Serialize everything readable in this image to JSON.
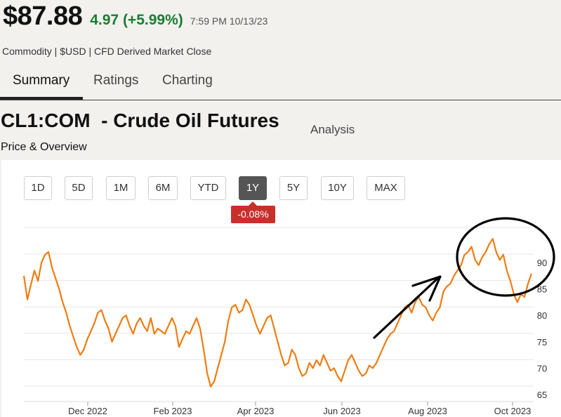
{
  "quote": {
    "price": "$87.88",
    "change": "4.97 (+5.99%)",
    "timestamp": "7:59 PM 10/13/23",
    "meta": "Commodity | $USD | CFD Derived Market Close",
    "change_color": "#1a7d33"
  },
  "tabs": [
    {
      "label": "Summary",
      "active": true
    },
    {
      "label": "Ratings",
      "active": false
    },
    {
      "label": "Charting",
      "active": false
    }
  ],
  "header": {
    "title": "CL1:COM  - Crude Oil Futures",
    "analysis_link": "Analysis",
    "subtitle": "Price & Overview"
  },
  "ranges": {
    "buttons": [
      "1D",
      "5D",
      "1M",
      "6M",
      "YTD",
      "1Y",
      "5Y",
      "10Y",
      "MAX"
    ],
    "selected": "1Y",
    "change_badge": "-0.08%"
  },
  "chart_data": {
    "type": "line",
    "line_color": "#f07c12",
    "x_tick_labels": [
      "Dec 2022",
      "Feb 2023",
      "Apr 2023",
      "Jun 2023",
      "Aug 2023",
      "Oct 2023"
    ],
    "y_tick_labels": [
      "65",
      "70",
      "75",
      "80",
      "85",
      "90"
    ],
    "ylim": [
      63,
      98
    ],
    "grid": true,
    "series": [
      {
        "values": [
          87.5,
          83.0,
          85.8,
          88.5,
          86.5,
          90.0,
          91.5,
          92.0,
          89.0,
          87.0,
          85.0,
          82.5,
          80.5,
          78.0,
          76.0,
          74.0,
          72.5,
          73.5,
          75.5,
          77.0,
          78.5,
          80.5,
          81.0,
          79.0,
          77.5,
          75.0,
          76.5,
          78.0,
          79.5,
          80.0,
          78.0,
          76.5,
          78.5,
          79.5,
          78.0,
          77.0,
          79.5,
          76.5,
          77.5,
          77.0,
          76.5,
          78.0,
          79.5,
          78.0,
          74.0,
          75.5,
          77.0,
          76.5,
          78.0,
          79.5,
          77.5,
          73.5,
          69.0,
          66.5,
          67.5,
          70.0,
          72.5,
          75.0,
          79.0,
          81.5,
          82.0,
          80.5,
          81.0,
          83.0,
          82.0,
          80.0,
          78.0,
          76.5,
          78.0,
          79.5,
          80.0,
          77.5,
          75.0,
          72.5,
          70.5,
          71.0,
          73.5,
          72.5,
          70.0,
          68.5,
          69.0,
          71.0,
          70.0,
          71.5,
          70.5,
          72.5,
          71.0,
          69.5,
          70.0,
          68.5,
          67.5,
          69.5,
          71.5,
          72.5,
          71.0,
          69.5,
          68.5,
          69.0,
          70.5,
          70.0,
          71.0,
          72.5,
          74.0,
          75.5,
          76.5,
          77.0,
          78.5,
          80.0,
          81.5,
          82.0,
          80.5,
          82.5,
          83.5,
          82.0,
          81.5,
          80.0,
          79.0,
          80.5,
          81.5,
          84.5,
          85.5,
          86.0,
          87.5,
          88.5,
          89.5,
          91.5,
          92.0,
          93.0,
          90.5,
          89.5,
          91.0,
          92.0,
          93.5,
          94.5,
          92.0,
          90.5,
          91.5,
          88.5,
          86.5,
          84.0,
          82.5,
          84.0,
          83.5,
          86.0,
          87.9
        ]
      }
    ]
  }
}
